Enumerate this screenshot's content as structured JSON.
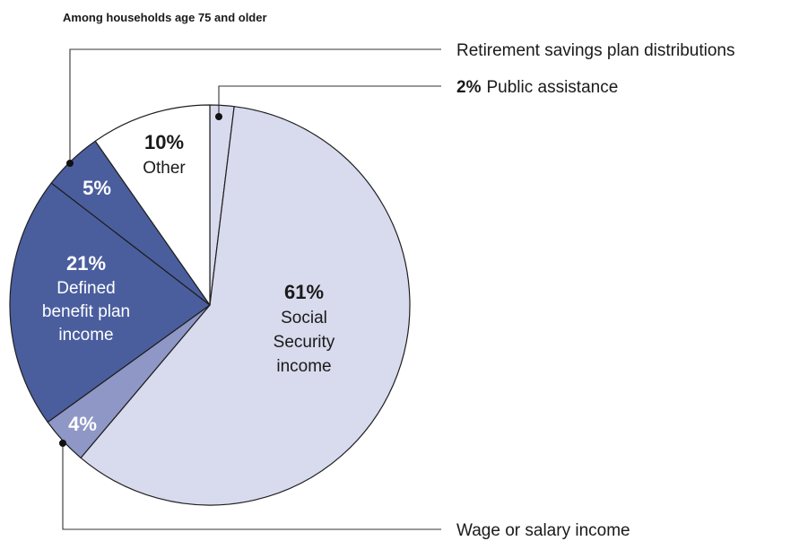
{
  "chart_data": {
    "type": "pie",
    "subtitle": "Among households age 75 and older",
    "start_angle_deg": 0,
    "direction": "clockwise",
    "slices": [
      {
        "value": 2,
        "percent": "2%",
        "name": "Public assistance",
        "callout_pct": "2%",
        "color": "#d8daed"
      },
      {
        "value": 61,
        "percent": "61%",
        "name_lines": [
          "Social",
          "Security",
          "income"
        ],
        "color": "#d8daed"
      },
      {
        "value": 4,
        "percent": "4%",
        "name": "Wage or salary income",
        "color": "#8e97c5"
      },
      {
        "value": 21,
        "percent": "21%",
        "name_lines": [
          "Defined",
          "benefit plan",
          "income"
        ],
        "color": "#4a5e9e"
      },
      {
        "value": 5,
        "percent": "5%",
        "name": "Retirement savings plan distributions",
        "color": "#4a5e9e"
      },
      {
        "value": 10,
        "percent": "10%",
        "name_lines": [
          "Other"
        ],
        "color": "#ffffff"
      }
    ]
  }
}
